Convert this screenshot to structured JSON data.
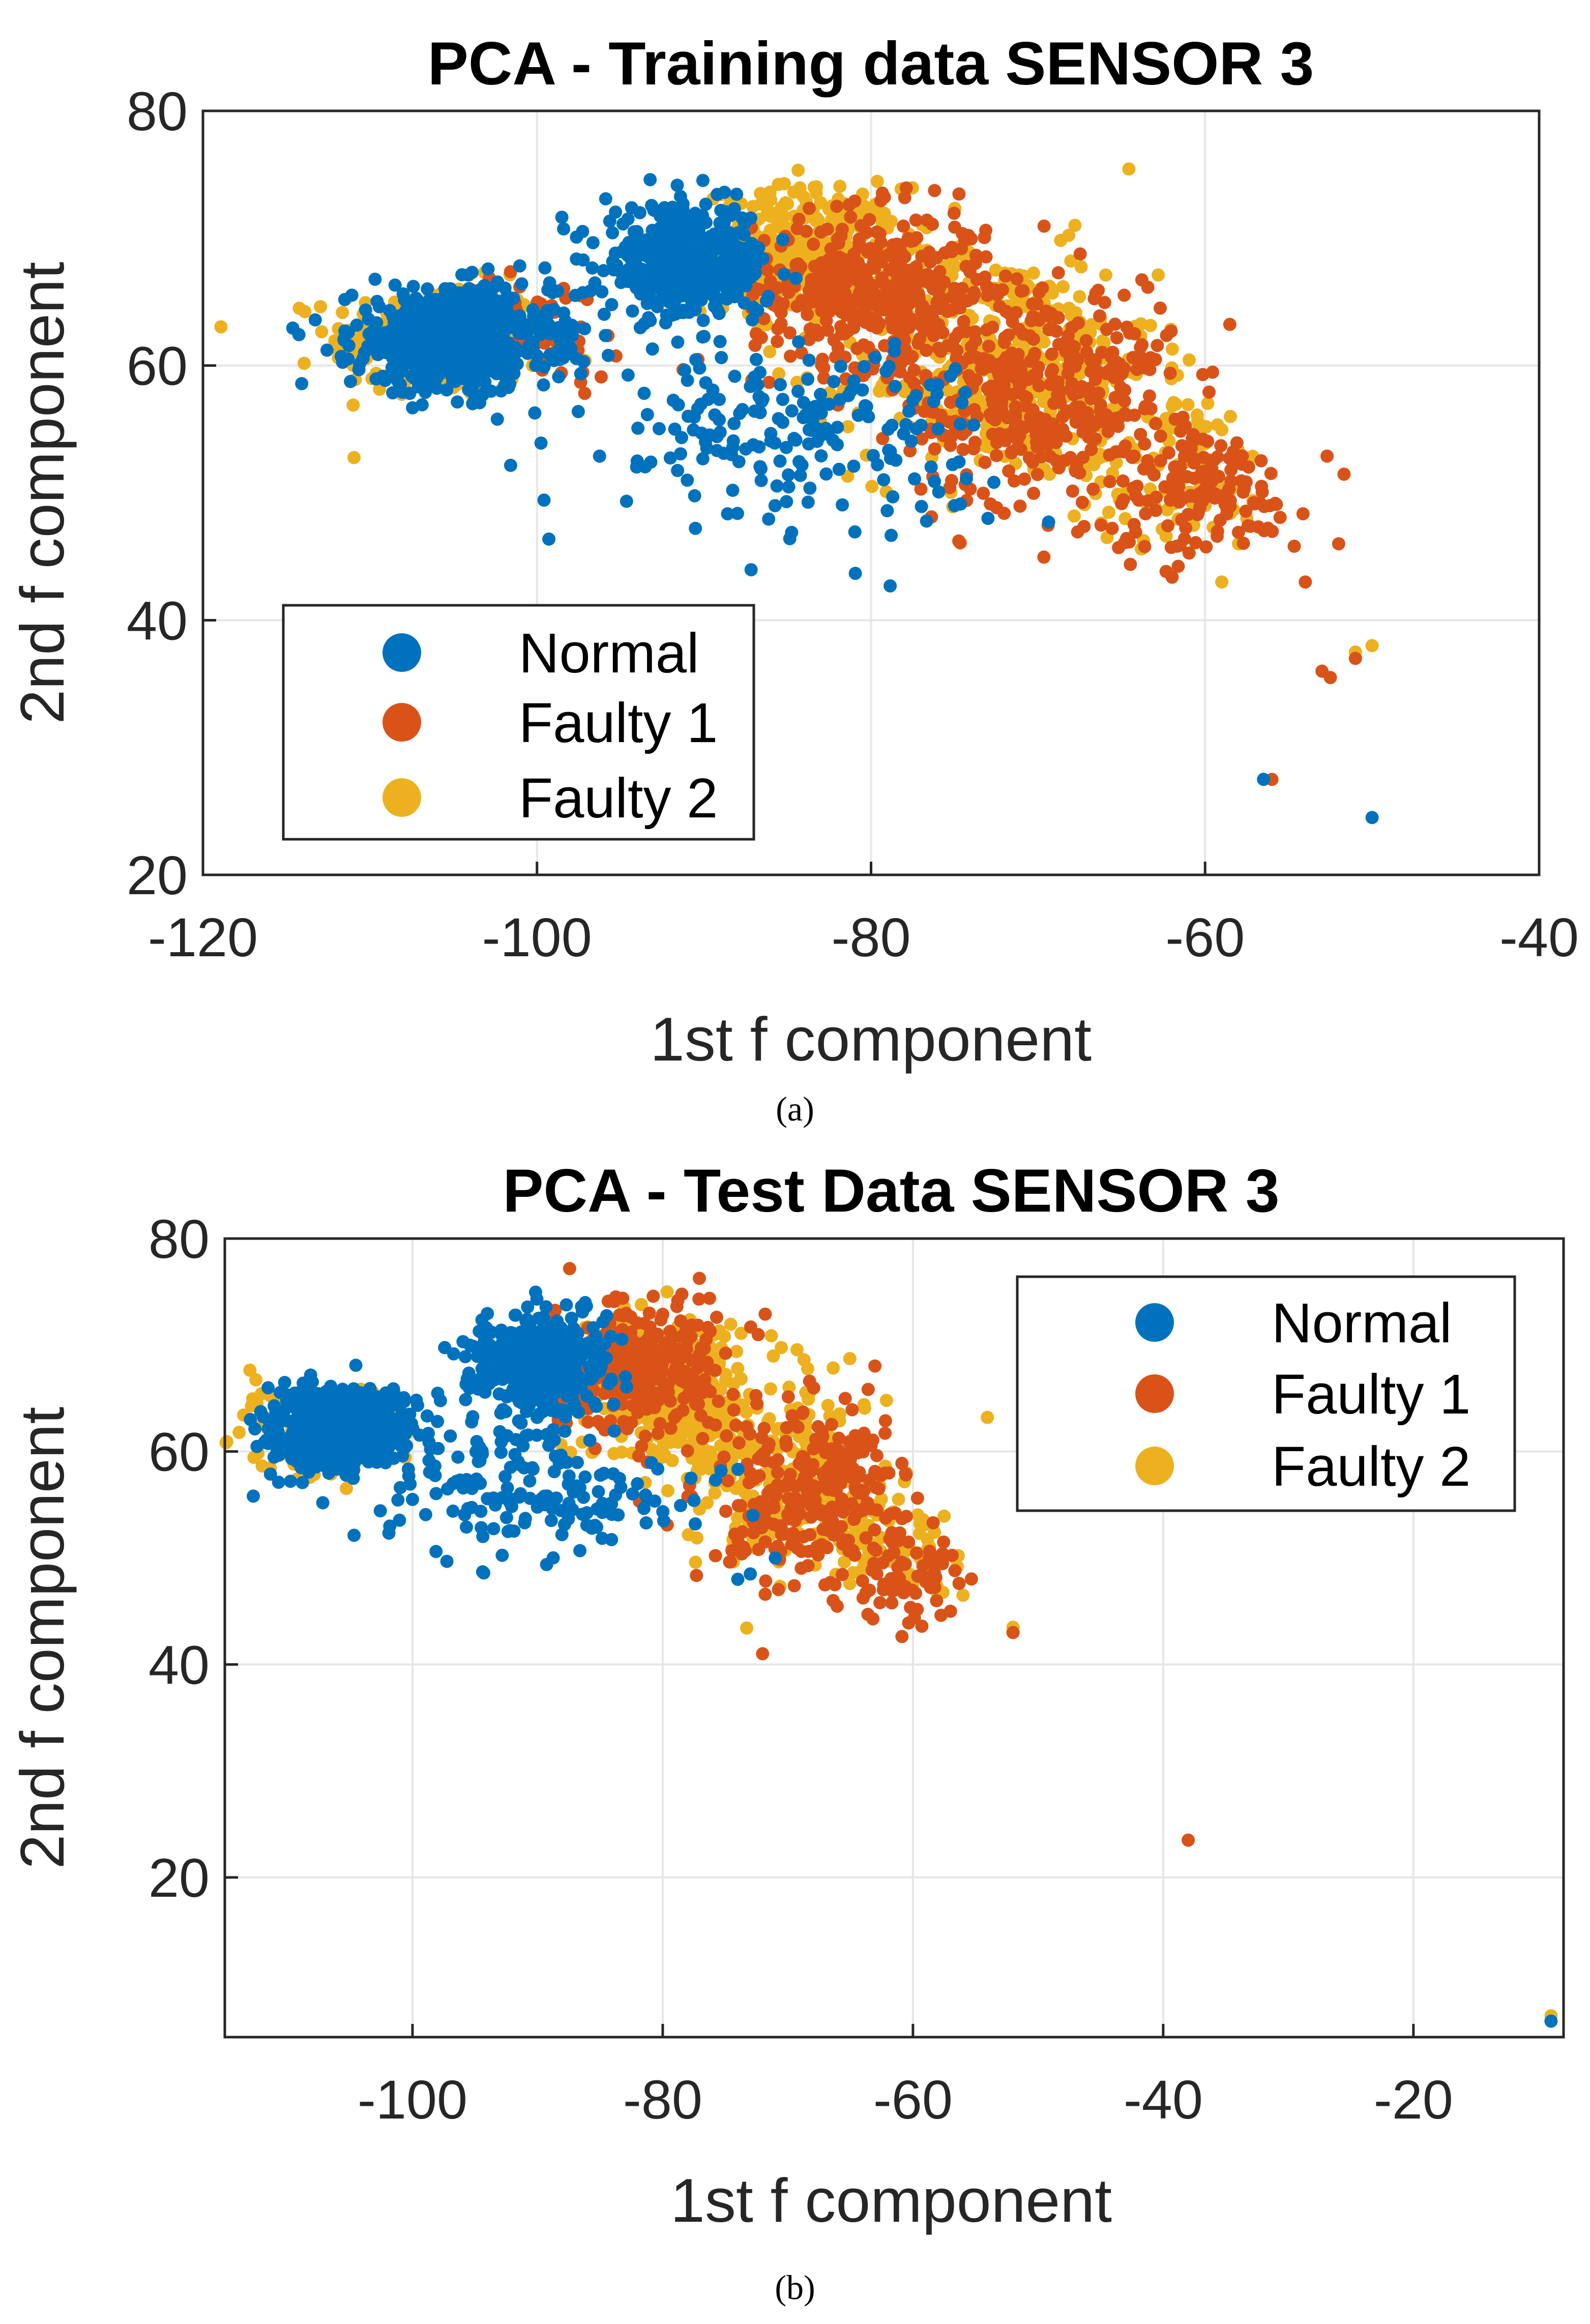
{
  "colors": {
    "normal": "#0072BD",
    "faulty1": "#D95319",
    "faulty2": "#EDB120"
  },
  "chart_data": [
    {
      "type": "scatter",
      "title": "PCA - Training data SENSOR 3",
      "xlabel": "1st f component",
      "ylabel": "2nd f component",
      "xlim": [
        -120,
        -40
      ],
      "ylim": [
        20,
        80
      ],
      "xticks": [
        -120,
        -100,
        -80,
        -60,
        -40
      ],
      "yticks": [
        20,
        40,
        60,
        80
      ],
      "xtick_labels": [
        "-120",
        "-100",
        "-80",
        "-60",
        "-40"
      ],
      "ytick_labels": [
        "20",
        "40",
        "60",
        "80"
      ],
      "grid": true,
      "legend_position": "bottom-left",
      "caption": "(a)",
      "series": [
        {
          "name": "Faulty 2",
          "color": "#EDB120",
          "clusters": [
            {
              "cx": -106,
              "cy": 62,
              "sx": 3.2,
              "sy": 2.2,
              "n": 260
            },
            {
              "cx": -84,
              "cy": 69,
              "sx": 3.0,
              "sy": 2.5,
              "n": 380
            },
            {
              "cx": -72,
              "cy": 60,
              "sx": 4.5,
              "sy": 4.5,
              "n": 420
            },
            {
              "cx": -62,
              "cy": 52,
              "sx": 3.0,
              "sy": 3.0,
              "n": 90
            }
          ],
          "points": [
            [
              -111,
              60
            ],
            [
              -110,
              61.5
            ],
            [
              -58,
              46
            ],
            [
              -59,
              43
            ],
            [
              -51,
              37.5
            ],
            [
              -50,
              38
            ],
            [
              -57.5,
              48
            ],
            [
              -60,
              49
            ]
          ]
        },
        {
          "name": "Faulty 1",
          "color": "#D95319",
          "clusters": [
            {
              "cx": -80,
              "cy": 66,
              "sx": 3.5,
              "sy": 3.0,
              "n": 430
            },
            {
              "cx": -70,
              "cy": 58,
              "sx": 4.0,
              "sy": 4.5,
              "n": 420
            },
            {
              "cx": -60,
              "cy": 50,
              "sx": 3.0,
              "sy": 2.5,
              "n": 140
            },
            {
              "cx": -100,
              "cy": 63,
              "sx": 2.5,
              "sy": 2.0,
              "n": 60
            }
          ],
          "points": [
            [
              -52,
              46
            ],
            [
              -54,
              43
            ],
            [
              -52.5,
              35.5
            ],
            [
              -51,
              37
            ],
            [
              -56,
              27.5
            ],
            [
              -53,
              36
            ]
          ]
        },
        {
          "name": "Normal",
          "color": "#0072BD",
          "clusters": [
            {
              "cx": -105,
              "cy": 62,
              "sx": 3.0,
              "sy": 2.0,
              "n": 650
            },
            {
              "cx": -91,
              "cy": 68,
              "sx": 2.5,
              "sy": 2.2,
              "n": 420
            },
            {
              "cx": -85,
              "cy": 55,
              "sx": 6.0,
              "sy": 3.5,
              "n": 200
            }
          ],
          "points": [
            [
              -56.5,
              27.5
            ],
            [
              -50,
              24.5
            ],
            [
              -73,
              48
            ],
            [
              -75,
              49
            ],
            [
              -94,
              52.5
            ],
            [
              -91,
              51
            ],
            [
              -76,
              58.5
            ]
          ]
        }
      ]
    },
    {
      "type": "scatter",
      "title": "PCA - Test Data SENSOR 3",
      "xlabel": "1st f component",
      "ylabel": "2nd f component",
      "xlim": [
        -115,
        -8
      ],
      "ylim": [
        5,
        80
      ],
      "xticks": [
        -100,
        -80,
        -60,
        -40,
        -20
      ],
      "yticks": [
        20,
        40,
        60,
        80
      ],
      "xtick_labels": [
        "-100",
        "-80",
        "-60",
        "-40",
        "-20"
      ],
      "ytick_labels": [
        "20",
        "40",
        "60",
        "80"
      ],
      "grid": true,
      "legend_position": "top-right",
      "caption": "(b)",
      "series": [
        {
          "name": "Faulty 2",
          "color": "#EDB120",
          "clusters": [
            {
              "cx": -107,
              "cy": 62,
              "sx": 3.0,
              "sy": 2.0,
              "n": 200
            },
            {
              "cx": -80,
              "cy": 66,
              "sx": 3.5,
              "sy": 3.5,
              "n": 380
            },
            {
              "cx": -70,
              "cy": 58,
              "sx": 4.0,
              "sy": 4.0,
              "n": 260
            },
            {
              "cx": -62,
              "cy": 51,
              "sx": 2.5,
              "sy": 2.5,
              "n": 70
            }
          ],
          "points": [
            [
              -52,
              43.5
            ],
            [
              -52,
              43
            ],
            [
              -9,
              7
            ],
            [
              -112,
              62.5
            ],
            [
              -56,
              46.5
            ]
          ]
        },
        {
          "name": "Faulty 1",
          "color": "#D95319",
          "clusters": [
            {
              "cx": -82,
              "cy": 68,
              "sx": 3.0,
              "sy": 3.0,
              "n": 300
            },
            {
              "cx": -68,
              "cy": 56,
              "sx": 4.0,
              "sy": 4.5,
              "n": 300
            },
            {
              "cx": -60,
              "cy": 48,
              "sx": 2.0,
              "sy": 2.0,
              "n": 60
            }
          ],
          "points": [
            [
              -38,
              23.5
            ],
            [
              -52,
              43
            ],
            [
              -57,
              45
            ]
          ]
        },
        {
          "name": "Normal",
          "color": "#0072BD",
          "clusters": [
            {
              "cx": -106,
              "cy": 62,
              "sx": 2.8,
              "sy": 1.8,
              "n": 600
            },
            {
              "cx": -90,
              "cy": 68,
              "sx": 2.8,
              "sy": 2.5,
              "n": 420
            },
            {
              "cx": -90,
              "cy": 56,
              "sx": 6.0,
              "sy": 3.0,
              "n": 160
            }
          ],
          "points": [
            [
              -9,
              6.5
            ],
            [
              -74,
              48
            ],
            [
              -73,
              48.5
            ],
            [
              -100,
              55.5
            ],
            [
              -71,
              50
            ]
          ]
        }
      ]
    }
  ]
}
